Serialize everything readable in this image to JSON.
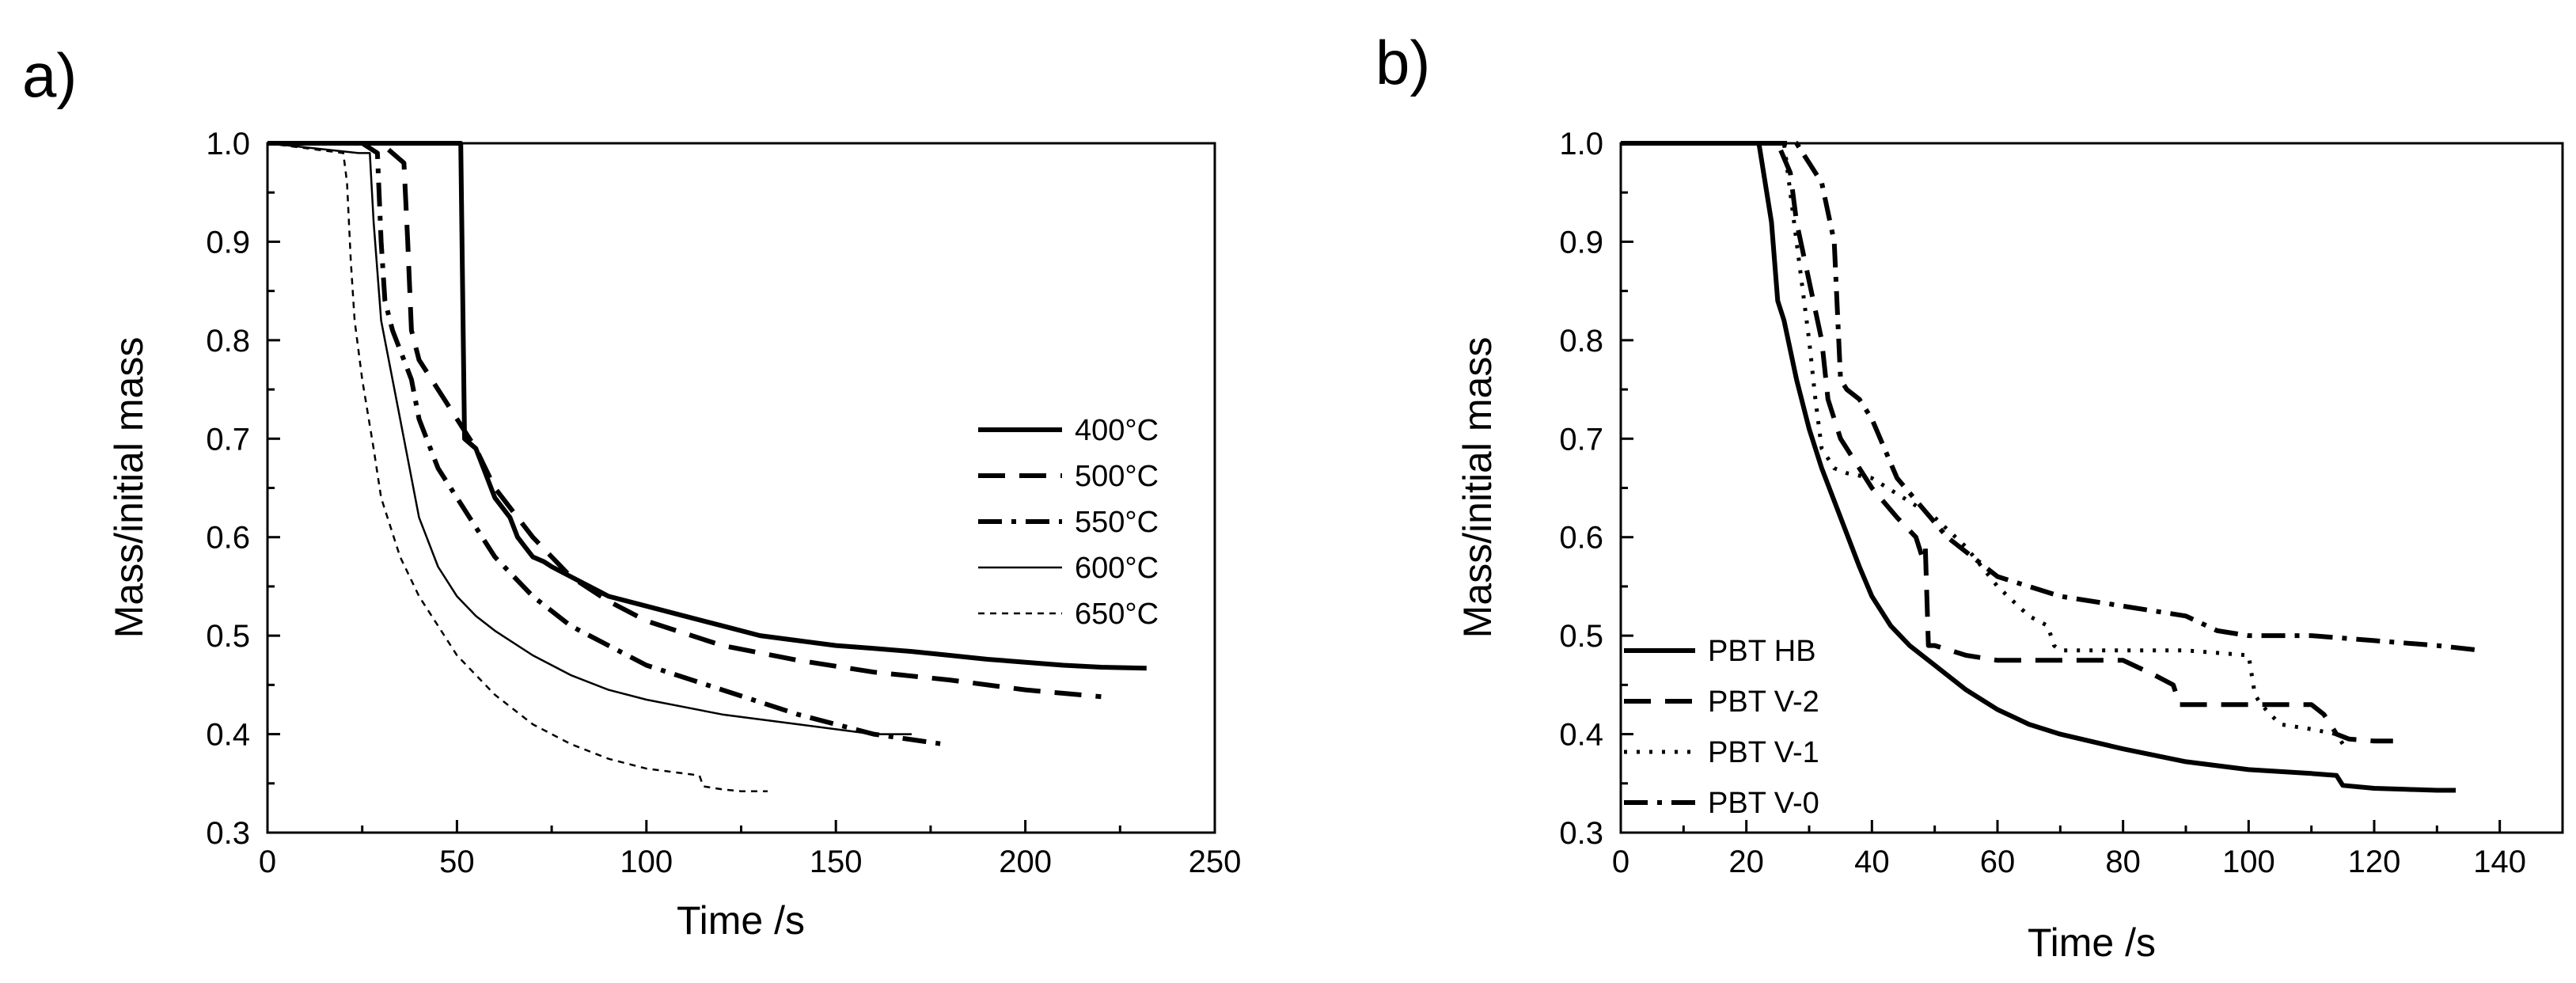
{
  "chart_data": [
    {
      "type": "line",
      "panel_label": "a)",
      "xlabel": "Time  /s",
      "ylabel": "Mass/initial mass",
      "xlim": [
        0,
        250
      ],
      "ylim": [
        0.3,
        1.0
      ],
      "xticks": [
        0,
        50,
        100,
        150,
        200,
        250
      ],
      "yticks": [
        0.3,
        0.4,
        0.5,
        0.6,
        0.7,
        0.8,
        0.9,
        1.0
      ],
      "xtick_labels": [
        "0",
        "50",
        "100",
        "150",
        "200",
        "250"
      ],
      "ytick_labels": [
        "0.3",
        "0.4",
        "0.5",
        "0.6",
        "0.7",
        "0.8",
        "0.9",
        "1.0"
      ],
      "legend_position": "right",
      "series": [
        {
          "name": "400°C",
          "style": "solid-thick",
          "x": [
            0,
            51,
            51.5,
            52,
            55,
            57,
            60,
            64,
            66,
            68,
            70,
            73,
            75,
            80,
            85,
            90,
            100,
            110,
            120,
            130,
            140,
            150,
            160,
            170,
            180,
            190,
            200,
            210,
            220,
            232
          ],
          "y": [
            1.0,
            1.0,
            0.85,
            0.7,
            0.69,
            0.67,
            0.64,
            0.62,
            0.6,
            0.59,
            0.58,
            0.575,
            0.57,
            0.56,
            0.55,
            0.54,
            0.53,
            0.52,
            0.51,
            0.5,
            0.495,
            0.49,
            0.487,
            0.484,
            0.48,
            0.476,
            0.473,
            0.47,
            0.468,
            0.467
          ]
        },
        {
          "name": "500°C",
          "style": "dashed",
          "x": [
            0,
            30,
            36,
            37,
            38,
            40,
            45,
            50,
            55,
            60,
            70,
            80,
            90,
            100,
            120,
            140,
            160,
            180,
            200,
            220
          ],
          "y": [
            1.0,
            1.0,
            0.98,
            0.9,
            0.81,
            0.78,
            0.75,
            0.72,
            0.69,
            0.65,
            0.6,
            0.56,
            0.535,
            0.515,
            0.49,
            0.475,
            0.463,
            0.455,
            0.445,
            0.438
          ]
        },
        {
          "name": "550°C",
          "style": "dash-dot",
          "x": [
            0,
            25,
            29,
            30,
            31,
            33,
            35,
            38,
            40,
            45,
            50,
            55,
            60,
            70,
            80,
            90,
            100,
            120,
            140,
            160,
            178
          ],
          "y": [
            1.0,
            1.0,
            0.99,
            0.9,
            0.84,
            0.81,
            0.79,
            0.76,
            0.72,
            0.67,
            0.64,
            0.61,
            0.58,
            0.54,
            0.51,
            0.49,
            0.47,
            0.445,
            0.42,
            0.4,
            0.39
          ]
        },
        {
          "name": "600°C",
          "style": "solid-thin",
          "x": [
            0,
            24,
            27,
            28,
            30,
            33,
            36,
            40,
            45,
            50,
            55,
            60,
            70,
            80,
            90,
            100,
            120,
            140,
            160,
            170
          ],
          "y": [
            1.0,
            0.99,
            0.99,
            0.92,
            0.82,
            0.76,
            0.7,
            0.62,
            0.57,
            0.54,
            0.52,
            0.505,
            0.48,
            0.46,
            0.445,
            0.435,
            0.42,
            0.41,
            0.4,
            0.4
          ]
        },
        {
          "name": "650°C",
          "style": "dotted-thin",
          "x": [
            0,
            20,
            21,
            22,
            23,
            25,
            28,
            30,
            35,
            40,
            45,
            50,
            60,
            70,
            80,
            90,
            100,
            110,
            114,
            115,
            120,
            125,
            132
          ],
          "y": [
            1.0,
            0.99,
            0.96,
            0.88,
            0.82,
            0.76,
            0.69,
            0.64,
            0.58,
            0.54,
            0.51,
            0.48,
            0.44,
            0.41,
            0.39,
            0.375,
            0.365,
            0.36,
            0.358,
            0.347,
            0.344,
            0.342,
            0.342
          ]
        }
      ]
    },
    {
      "type": "line",
      "panel_label": "b)",
      "xlabel": "Time  /s",
      "ylabel": "Mass/initial mass",
      "xlim": [
        0,
        150
      ],
      "ylim": [
        0.3,
        1.0
      ],
      "xticks": [
        0,
        20,
        40,
        60,
        80,
        100,
        120,
        140
      ],
      "yticks": [
        0.3,
        0.4,
        0.5,
        0.6,
        0.7,
        0.8,
        0.9,
        1.0
      ],
      "xtick_labels": [
        "0",
        "20",
        "40",
        "60",
        "80",
        "100",
        "120",
        "140"
      ],
      "ytick_labels": [
        "0.3",
        "0.4",
        "0.5",
        "0.6",
        "0.7",
        "0.8",
        "0.9",
        "1.0"
      ],
      "legend_position": "bottom-left",
      "series": [
        {
          "name": "PBT HB",
          "style": "solid-thick",
          "x": [
            0,
            22,
            24,
            25,
            26,
            28,
            30,
            32,
            35,
            38,
            40,
            43,
            46,
            50,
            55,
            60,
            65,
            70,
            80,
            90,
            100,
            110,
            114,
            115,
            120,
            125,
            130,
            133
          ],
          "y": [
            1.0,
            1.0,
            0.92,
            0.84,
            0.82,
            0.76,
            0.71,
            0.67,
            0.62,
            0.57,
            0.54,
            0.51,
            0.49,
            0.47,
            0.445,
            0.425,
            0.41,
            0.4,
            0.385,
            0.372,
            0.364,
            0.36,
            0.358,
            0.348,
            0.345,
            0.344,
            0.343,
            0.343
          ]
        },
        {
          "name": "PBT V-2",
          "style": "dashed",
          "x": [
            0,
            25,
            27,
            28,
            30,
            32,
            33,
            35,
            38,
            40,
            44,
            47,
            48,
            48.5,
            49,
            50,
            55,
            60,
            70,
            80,
            85,
            88,
            89,
            90,
            100,
            110,
            112,
            114,
            116,
            120,
            123
          ],
          "y": [
            1.0,
            1.0,
            0.97,
            0.92,
            0.86,
            0.8,
            0.74,
            0.7,
            0.67,
            0.65,
            0.62,
            0.6,
            0.58,
            0.59,
            0.49,
            0.49,
            0.48,
            0.475,
            0.475,
            0.475,
            0.46,
            0.45,
            0.43,
            0.43,
            0.43,
            0.43,
            0.42,
            0.4,
            0.395,
            0.393,
            0.393
          ]
        },
        {
          "name": "PBT V-1",
          "style": "dotted",
          "x": [
            0,
            26,
            27,
            28,
            30,
            31,
            32,
            34,
            36,
            40,
            45,
            50,
            55,
            60,
            65,
            68,
            69,
            70,
            80,
            90,
            100,
            101,
            102,
            105,
            110,
            114,
            115
          ],
          "y": [
            1.0,
            1.0,
            0.95,
            0.9,
            0.8,
            0.74,
            0.69,
            0.67,
            0.665,
            0.66,
            0.64,
            0.62,
            0.59,
            0.55,
            0.52,
            0.51,
            0.49,
            0.485,
            0.485,
            0.485,
            0.48,
            0.44,
            0.43,
            0.41,
            0.405,
            0.4,
            0.39
          ]
        },
        {
          "name": "PBT V-0",
          "style": "dash-dot",
          "x": [
            0,
            28,
            30,
            32,
            34,
            35,
            36,
            38,
            40,
            44,
            48,
            52,
            56,
            60,
            70,
            80,
            90,
            95,
            100,
            110,
            120,
            130,
            137
          ],
          "y": [
            1.0,
            1.0,
            0.98,
            0.96,
            0.9,
            0.76,
            0.75,
            0.74,
            0.72,
            0.66,
            0.63,
            0.6,
            0.58,
            0.56,
            0.54,
            0.53,
            0.52,
            0.505,
            0.5,
            0.5,
            0.495,
            0.49,
            0.485
          ]
        }
      ]
    }
  ]
}
